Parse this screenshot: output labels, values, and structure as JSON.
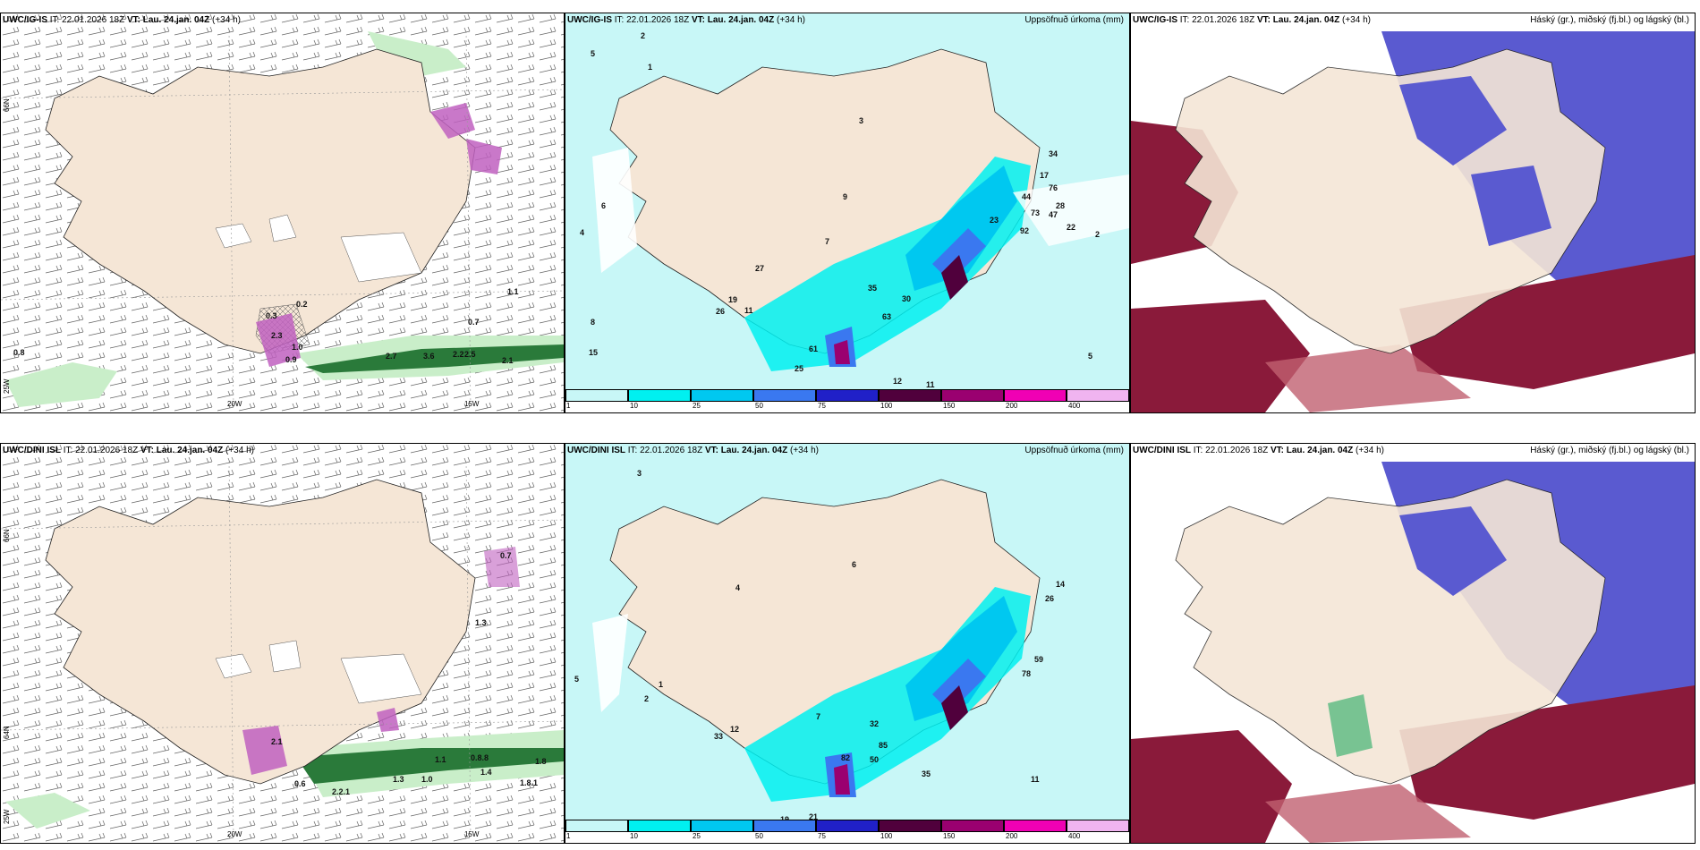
{
  "panels": [
    {
      "model": "UWC/IG-IS",
      "it_label": "IT:",
      "it": "22.01.2026 18Z",
      "vt_label": "VT:",
      "vt": "Lau. 24.jan. 04Z",
      "lead": "(+34 h)",
      "title": ""
    },
    {
      "model": "UWC/IG-IS",
      "it_label": "IT:",
      "it": "22.01.2026 18Z",
      "vt_label": "VT:",
      "vt": "Lau. 24.jan. 04Z",
      "lead": "(+34 h)",
      "title": "Uppsöfnuð úrkoma (mm)"
    },
    {
      "model": "UWC/IG-IS",
      "it_label": "IT:",
      "it": "22.01.2026 18Z",
      "vt_label": "VT:",
      "vt": "Lau. 24.jan. 04Z",
      "lead": "(+34 h)",
      "title": "Háský (gr.), miðský (fj.bl.) og lágský (bl.)"
    },
    {
      "model": "UWC/DINI ISL",
      "it_label": "IT:",
      "it": "22.01.2026 18Z",
      "vt_label": "VT:",
      "vt": "Lau. 24.jan. 04Z",
      "lead": "(+34 h)",
      "title": ""
    },
    {
      "model": "UWC/DINI ISL",
      "it_label": "IT:",
      "it": "22.01.2026 18Z",
      "vt_label": "VT:",
      "vt": "Lau. 24.jan. 04Z",
      "lead": "(+34 h)",
      "title": "Uppsöfnuð úrkoma (mm)"
    },
    {
      "model": "UWC/DINI ISL",
      "it_label": "IT:",
      "it": "22.01.2026 18Z",
      "vt_label": "VT:",
      "vt": "Lau. 24.jan. 04Z",
      "lead": "(+34 h)",
      "title": "Háský (gr.), miðský (fj.bl.) og lágský (bl.)"
    }
  ],
  "axes": {
    "lon_20": "20W",
    "lon_15": "15W",
    "lat_66": "66N",
    "lat_64": "64N",
    "lon_25": "25W"
  },
  "legend": {
    "ticks": [
      "1",
      "10",
      "25",
      "50",
      "75",
      "100",
      "150",
      "200",
      "400"
    ],
    "colors": [
      "#c8f7f7",
      "#00f0f0",
      "#00c8f0",
      "#3a78f0",
      "#2020c8",
      "#50003c",
      "#9a0070",
      "#f000b4",
      "#f0b4f0"
    ]
  },
  "values": {
    "p1": [
      "0.8",
      "1.0",
      "0.9",
      "2.7",
      "3.6",
      "2.2",
      "2.5",
      "2.1",
      "1.1",
      "0.7",
      "0.3",
      "0.2",
      "2.3"
    ],
    "p2": [
      "5",
      "2",
      "1",
      "4",
      "6",
      "8",
      "15",
      "11",
      "19",
      "26",
      "27",
      "7",
      "9",
      "3",
      "35",
      "30",
      "63",
      "61",
      "25",
      "12",
      "11",
      "73",
      "23",
      "44",
      "92",
      "76",
      "34",
      "22",
      "47",
      "17",
      "28",
      "5",
      "2"
    ],
    "p4": [
      "2.1",
      "0.6",
      "1.0",
      "1.1",
      "0.8.8",
      "1.8",
      "2.2.1",
      "1.3",
      "1.4",
      "1.8.1",
      "0.7",
      "1.3"
    ],
    "p5": [
      "3",
      "5",
      "2",
      "1",
      "4",
      "6",
      "7",
      "12",
      "33",
      "32",
      "19",
      "21",
      "50",
      "82",
      "85",
      "35",
      "14",
      "26",
      "59",
      "78",
      "11"
    ]
  },
  "colors": {
    "land": "#f5e6d6",
    "ocean": "#ffffff",
    "wet_light": "#c8f7f7",
    "wet_cyan": "#00f0f0",
    "high_cloud": "#8a1a3a",
    "mid_cloud": "#5a5ad0",
    "low_cloud": "#3a78f0"
  }
}
